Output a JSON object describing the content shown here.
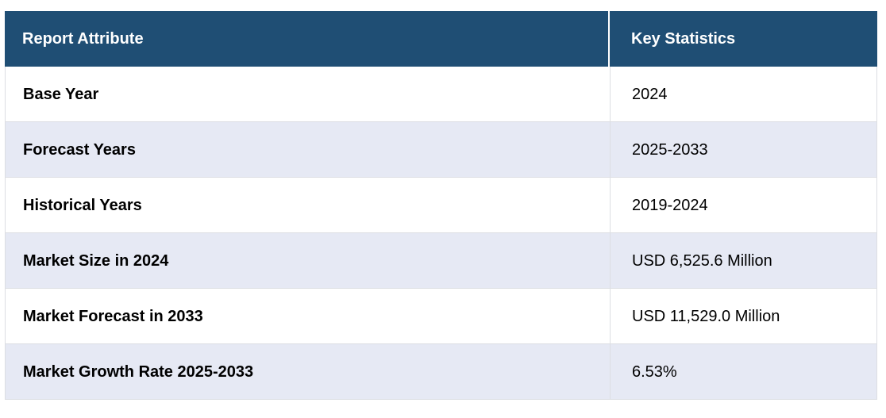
{
  "table": {
    "columns": [
      {
        "label": "Report Attribute"
      },
      {
        "label": "Key Statistics"
      }
    ],
    "rows": [
      {
        "attribute": "Base Year",
        "value": "2024"
      },
      {
        "attribute": "Forecast Years",
        "value": "2025-2033"
      },
      {
        "attribute": "Historical Years",
        "value": "2019-2024"
      },
      {
        "attribute": "Market Size in 2024",
        "value": "USD 6,525.6 Million"
      },
      {
        "attribute": "Market Forecast in 2033",
        "value": "USD 11,529.0 Million"
      },
      {
        "attribute": "Market Growth Rate 2025-2033",
        "value": "6.53%"
      }
    ]
  },
  "colors": {
    "header_bg": "#1f4e74",
    "header_text": "#ffffff",
    "alt_row_bg": "#e6e9f4",
    "row_bg": "#ffffff",
    "border": "#dcdee3",
    "body_text": "#000000"
  }
}
